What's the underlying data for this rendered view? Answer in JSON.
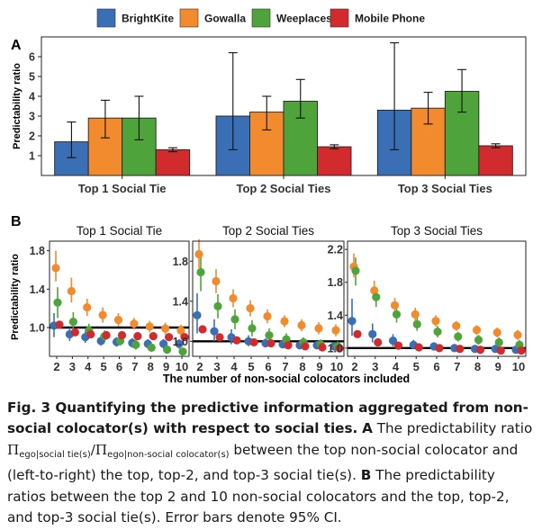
{
  "legend": [
    {
      "name": "BrightKite",
      "color": "#3a6eb5"
    },
    {
      "name": "Gowalla",
      "color": "#f28a2e"
    },
    {
      "name": "Weeplaces",
      "color": "#4ea43a"
    },
    {
      "name": "Mobile Phone",
      "color": "#d12b2e"
    }
  ],
  "panel_a": {
    "label": "A"
  },
  "panel_b": {
    "label": "B"
  },
  "chart_data": [
    {
      "type": "bar",
      "panel": "A",
      "ylabel": "Predictability ratio",
      "ylim": [
        0,
        7
      ],
      "yticks": [
        1,
        2,
        3,
        4,
        5,
        6
      ],
      "grid": false,
      "legend_placement": "top",
      "categories": [
        "Top 1 Social Tie",
        "Top 2 Social Ties",
        "Top 3 Social Ties"
      ],
      "series": [
        {
          "name": "BrightKite",
          "values": [
            1.7,
            3.0,
            3.3
          ],
          "ci_low": [
            0.9,
            1.3,
            1.3
          ],
          "ci_high": [
            2.7,
            6.2,
            6.7
          ]
        },
        {
          "name": "Gowalla",
          "values": [
            2.9,
            3.2,
            3.4
          ],
          "ci_low": [
            1.9,
            2.3,
            2.6
          ],
          "ci_high": [
            3.8,
            4.0,
            4.2
          ]
        },
        {
          "name": "Weeplaces",
          "values": [
            2.9,
            3.75,
            4.25
          ],
          "ci_low": [
            1.8,
            2.9,
            3.2
          ],
          "ci_high": [
            4.0,
            4.85,
            5.35
          ]
        },
        {
          "name": "Mobile Phone",
          "values": [
            1.3,
            1.45,
            1.5
          ],
          "ci_low": [
            1.2,
            1.35,
            1.4
          ],
          "ci_high": [
            1.4,
            1.55,
            1.6
          ]
        }
      ]
    },
    {
      "type": "scatter",
      "panel": "B",
      "title": "Top 1 Social Tie",
      "ylabel": "Predictability ratio",
      "ylim": [
        0.7,
        1.9
      ],
      "yticks": [
        1.0,
        1.4,
        1.8
      ],
      "x": [
        2,
        3,
        4,
        5,
        6,
        7,
        8,
        9,
        10
      ],
      "reference_line": 1.0,
      "series": [
        {
          "name": "BrightKite",
          "values": [
            1.02,
            0.93,
            0.9,
            0.86,
            0.85,
            0.84,
            0.83,
            0.83,
            0.83
          ],
          "ci_low": [
            0.9,
            0.86,
            0.84,
            0.81,
            0.8,
            0.79,
            0.78,
            0.78,
            0.78
          ],
          "ci_high": [
            1.15,
            1.0,
            0.96,
            0.92,
            0.9,
            0.89,
            0.88,
            0.88,
            0.88
          ]
        },
        {
          "name": "Gowalla",
          "values": [
            1.62,
            1.38,
            1.21,
            1.13,
            1.08,
            1.04,
            1.01,
            0.99,
            0.97
          ],
          "ci_low": [
            1.48,
            1.26,
            1.12,
            1.05,
            1.01,
            0.98,
            0.95,
            0.93,
            0.91
          ],
          "ci_high": [
            1.8,
            1.52,
            1.3,
            1.21,
            1.15,
            1.1,
            1.07,
            1.05,
            1.03
          ]
        },
        {
          "name": "Weeplaces",
          "values": [
            1.26,
            1.06,
            0.97,
            0.91,
            0.86,
            0.82,
            0.79,
            0.77,
            0.75
          ],
          "ci_low": [
            1.1,
            0.96,
            0.9,
            0.85,
            0.81,
            0.77,
            0.75,
            0.73,
            0.71
          ],
          "ci_high": [
            1.42,
            1.16,
            1.04,
            0.97,
            0.91,
            0.87,
            0.83,
            0.81,
            0.79
          ]
        },
        {
          "name": "Mobile Phone",
          "values": [
            1.03,
            0.95,
            0.93,
            0.92,
            0.92,
            0.91,
            0.91,
            0.9,
            0.9
          ],
          "ci_low": [
            1.0,
            0.93,
            0.91,
            0.9,
            0.9,
            0.89,
            0.89,
            0.88,
            0.88
          ],
          "ci_high": [
            1.06,
            0.97,
            0.95,
            0.94,
            0.94,
            0.93,
            0.93,
            0.92,
            0.92
          ]
        }
      ]
    },
    {
      "type": "scatter",
      "panel": "B",
      "title": "Top 2 Social Ties",
      "ylim": [
        0.85,
        2.0
      ],
      "yticks": [
        1.0,
        1.4,
        1.8
      ],
      "x": [
        2,
        3,
        4,
        5,
        6,
        7,
        8,
        9,
        10
      ],
      "reference_line": 1.0,
      "series": [
        {
          "name": "BrightKite",
          "values": [
            1.26,
            1.1,
            1.04,
            1.0,
            0.98,
            0.97,
            0.96,
            0.96,
            0.95
          ],
          "ci_low": [
            1.08,
            1.0,
            0.97,
            0.95,
            0.94,
            0.93,
            0.92,
            0.92,
            0.91
          ],
          "ci_high": [
            1.48,
            1.22,
            1.12,
            1.06,
            1.03,
            1.01,
            1.0,
            1.0,
            0.99
          ]
        },
        {
          "name": "Gowalla",
          "values": [
            1.87,
            1.6,
            1.43,
            1.33,
            1.25,
            1.2,
            1.16,
            1.13,
            1.11
          ],
          "ci_low": [
            1.73,
            1.48,
            1.34,
            1.25,
            1.18,
            1.14,
            1.1,
            1.07,
            1.05
          ],
          "ci_high": [
            2.02,
            1.72,
            1.52,
            1.41,
            1.32,
            1.26,
            1.22,
            1.19,
            1.17
          ]
        },
        {
          "name": "Weeplaces",
          "values": [
            1.69,
            1.35,
            1.22,
            1.13,
            1.06,
            1.02,
            0.99,
            0.97,
            0.95
          ],
          "ci_low": [
            1.5,
            1.23,
            1.12,
            1.05,
            1.0,
            0.97,
            0.94,
            0.92,
            0.9
          ],
          "ci_high": [
            1.85,
            1.47,
            1.32,
            1.21,
            1.13,
            1.08,
            1.04,
            1.02,
            1.0
          ]
        },
        {
          "name": "Mobile Phone",
          "values": [
            1.12,
            1.04,
            1.01,
            0.99,
            0.98,
            0.96,
            0.95,
            0.94,
            0.93
          ],
          "ci_low": [
            1.08,
            1.01,
            0.98,
            0.96,
            0.95,
            0.93,
            0.92,
            0.91,
            0.9
          ],
          "ci_high": [
            1.16,
            1.07,
            1.04,
            1.02,
            1.01,
            0.99,
            0.98,
            0.97,
            0.96
          ]
        }
      ]
    },
    {
      "type": "scatter",
      "panel": "B",
      "title": "Top 3 Social Ties",
      "ylim": [
        0.9,
        2.3
      ],
      "yticks": [
        1.0,
        1.4,
        1.8,
        2.2
      ],
      "x": [
        2,
        3,
        4,
        5,
        6,
        7,
        8,
        9,
        10
      ],
      "reference_line": 1.0,
      "series": [
        {
          "name": "BrightKite",
          "values": [
            1.33,
            1.17,
            1.09,
            1.04,
            1.02,
            1.0,
            0.99,
            0.99,
            0.98
          ],
          "ci_low": [
            1.15,
            1.07,
            1.02,
            0.99,
            0.97,
            0.96,
            0.95,
            0.95,
            0.94
          ],
          "ci_high": [
            1.6,
            1.3,
            1.17,
            1.1,
            1.07,
            1.05,
            1.03,
            1.03,
            1.02
          ]
        },
        {
          "name": "Gowalla",
          "values": [
            1.99,
            1.7,
            1.52,
            1.41,
            1.33,
            1.27,
            1.22,
            1.19,
            1.16
          ],
          "ci_low": [
            1.86,
            1.58,
            1.43,
            1.33,
            1.26,
            1.21,
            1.16,
            1.13,
            1.1
          ],
          "ci_high": [
            2.15,
            1.82,
            1.61,
            1.49,
            1.4,
            1.33,
            1.28,
            1.25,
            1.22
          ]
        },
        {
          "name": "Weeplaces",
          "values": [
            1.94,
            1.62,
            1.41,
            1.29,
            1.2,
            1.14,
            1.1,
            1.07,
            1.04
          ],
          "ci_low": [
            1.76,
            1.5,
            1.31,
            1.21,
            1.13,
            1.08,
            1.04,
            1.01,
            0.98
          ],
          "ci_high": [
            2.1,
            1.74,
            1.51,
            1.37,
            1.27,
            1.2,
            1.16,
            1.13,
            1.1
          ]
        },
        {
          "name": "Mobile Phone",
          "values": [
            1.17,
            1.07,
            1.03,
            1.01,
            1.0,
            0.99,
            0.98,
            0.97,
            0.97
          ],
          "ci_low": [
            1.13,
            1.04,
            1.0,
            0.98,
            0.97,
            0.96,
            0.95,
            0.94,
            0.94
          ],
          "ci_high": [
            1.21,
            1.1,
            1.06,
            1.04,
            1.03,
            1.02,
            1.01,
            1.0,
            1.0
          ]
        }
      ]
    }
  ],
  "panel_b_ylabel": "Predictability ratio",
  "panel_b_xlabel": "The number of non-social colocators included",
  "caption": {
    "title": "Fig. 3 Quantifying the predictive information aggregated from non-social colocator(s) with respect to social ties.",
    "label_a": "A",
    "text_a_1": "The predictability ratio",
    "symbol": "Π",
    "sub_1": "ego|social tie(s)",
    "slash": "/",
    "sub_2": "ego|non-social colocator(s)",
    "text_a_2": "between the top non-social colocator and (left-to-right) the top, top-2, and top-3 social tie(s).",
    "label_b": "B",
    "text_b": "The predictability ratios between the top 2 and 10 non-social colocators and the top, top-2, and top-3 social tie(s). Error bars denote 95% CI."
  }
}
